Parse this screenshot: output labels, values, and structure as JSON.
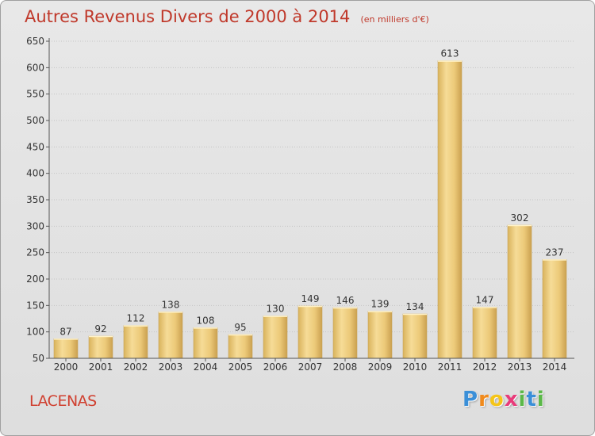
{
  "chart_data": {
    "type": "bar",
    "title": "Autres Revenus Divers de 2000 à 2014",
    "subtitle": "(en milliers d'€)",
    "categories": [
      "2000",
      "2001",
      "2002",
      "2003",
      "2004",
      "2005",
      "2006",
      "2007",
      "2008",
      "2009",
      "2010",
      "2011",
      "2012",
      "2013",
      "2014"
    ],
    "values": [
      87,
      92,
      112,
      138,
      108,
      95,
      130,
      149,
      146,
      139,
      134,
      613,
      147,
      302,
      237
    ],
    "ylim": [
      50,
      650
    ],
    "yticks": [
      50,
      100,
      150,
      200,
      250,
      300,
      350,
      400,
      450,
      500,
      550,
      600,
      650
    ],
    "grid": true,
    "bar_color": "#e8c877"
  },
  "location": "LACENAS",
  "brand": {
    "letters": [
      "P",
      "r",
      "o",
      "x",
      "i",
      "t",
      "i"
    ],
    "colors": [
      "#3a8fd8",
      "#f08a1c",
      "#f5c518",
      "#e83b7a",
      "#5bb848",
      "#3a8fd8",
      "#5bb848"
    ]
  }
}
